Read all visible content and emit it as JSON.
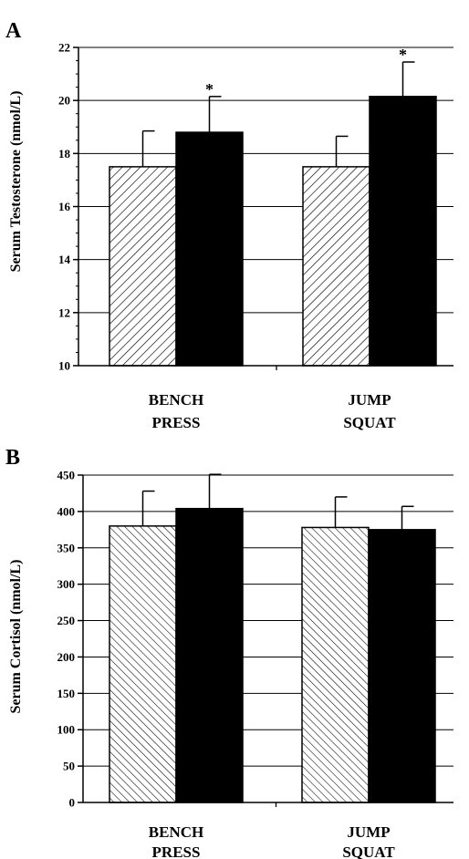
{
  "chart_data": [
    {
      "panel_label": "A",
      "type": "bar",
      "ylabel": "Serum Testosterone (nmol/L)",
      "ylim": [
        10,
        22
      ],
      "ytick_step": 2,
      "minor_tick_step": 0.5,
      "grid": true,
      "categories": [
        [
          "BENCH",
          "PRESS"
        ],
        [
          "JUMP",
          "SQUAT"
        ]
      ],
      "series": [
        {
          "pattern": "hatch-forward",
          "values": [
            17.5,
            17.5
          ],
          "errors": [
            1.35,
            1.15
          ]
        },
        {
          "pattern": "solid",
          "values": [
            18.8,
            20.15
          ],
          "errors": [
            1.35,
            1.3
          ]
        }
      ],
      "annotations": [
        {
          "text": "*",
          "category": 0,
          "series": 1
        },
        {
          "text": "*",
          "category": 1,
          "series": 1
        }
      ]
    },
    {
      "panel_label": "B",
      "type": "bar",
      "ylabel": "Serum Cortisol (nmol/L)",
      "ylim": [
        0,
        450
      ],
      "ytick_step": 50,
      "minor_tick_step": null,
      "grid": true,
      "categories": [
        [
          "BENCH",
          "PRESS"
        ],
        [
          "JUMP",
          "SQUAT"
        ]
      ],
      "series": [
        {
          "pattern": "hatch-back",
          "values": [
            380,
            378
          ],
          "errors": [
            48,
            42
          ]
        },
        {
          "pattern": "solid",
          "values": [
            404,
            375
          ],
          "errors": [
            47,
            32
          ]
        }
      ],
      "annotations": []
    }
  ]
}
